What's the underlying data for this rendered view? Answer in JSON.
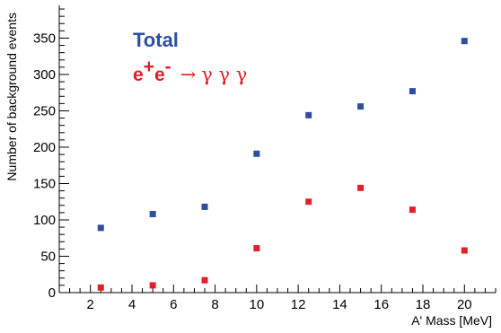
{
  "chart_data": {
    "type": "scatter",
    "xlabel": "A' Mass [MeV]",
    "ylabel": "Number of background events",
    "xlim": [
      0.5,
      21.5
    ],
    "ylim": [
      0,
      395
    ],
    "xticks": [
      "2",
      "4",
      "6",
      "8",
      "10",
      "12",
      "14",
      "16",
      "18",
      "20"
    ],
    "yticks": [
      "0",
      "50",
      "100",
      "150",
      "200",
      "250",
      "300",
      "350"
    ],
    "grid": false,
    "legend_placement": "top-left",
    "series": [
      {
        "name": "Total",
        "color": "#2d4fa0",
        "marker": "square",
        "x": [
          2.5,
          5,
          7.5,
          10,
          12.5,
          15,
          17.5,
          20
        ],
        "y": [
          89,
          108,
          118,
          191,
          244,
          256,
          277,
          346
        ]
      },
      {
        "name": "e+e- → γ γ γ",
        "color": "#e0202a",
        "marker": "square",
        "x": [
          2.5,
          5,
          7.5,
          10,
          12.5,
          15,
          17.5,
          20
        ],
        "y": [
          7,
          10,
          17,
          61,
          125,
          144,
          114,
          58
        ]
      }
    ],
    "legend": {
      "total_label": "Total",
      "ee_e1": "e",
      "ee_sup1": "+",
      "ee_e2": "e",
      "ee_sup2": "-",
      "ee_arrow": "→",
      "ee_gammas": "γ γ γ"
    }
  }
}
